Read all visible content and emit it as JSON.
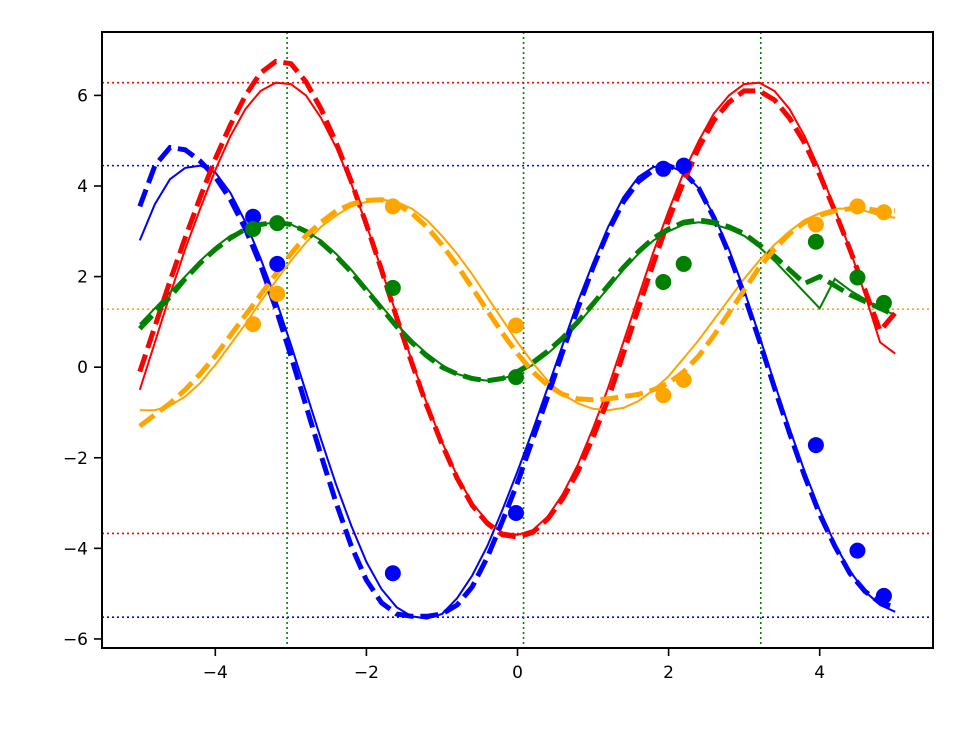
{
  "chart_data": {
    "type": "line",
    "title": "",
    "xlabel": "",
    "ylabel": "",
    "xlim": [
      -5.5,
      5.5
    ],
    "ylim": [
      -6.2,
      7.4
    ],
    "xticks": [
      -4,
      -2,
      0,
      2,
      4
    ],
    "yticks": [
      -6,
      -4,
      -2,
      0,
      2,
      4,
      6
    ],
    "xtick_labels": [
      "−4",
      "−2",
      "0",
      "2",
      "4"
    ],
    "ytick_labels": [
      "−6",
      "−4",
      "−2",
      "0",
      "2",
      "4",
      "6"
    ],
    "grid": false,
    "legend": "none",
    "series": [
      {
        "color": "#0000ff",
        "fit_x": [
          -5.0,
          -4.8,
          -4.6,
          -4.4,
          -4.2,
          -4.0,
          -3.8,
          -3.6,
          -3.4,
          -3.2,
          -3.0,
          -2.8,
          -2.6,
          -2.4,
          -2.2,
          -2.0,
          -1.8,
          -1.6,
          -1.4,
          -1.2,
          -1.0,
          -0.8,
          -0.6,
          -0.4,
          -0.2,
          0.0,
          0.2,
          0.4,
          0.6,
          0.8,
          1.0,
          1.2,
          1.4,
          1.6,
          1.8,
          2.0,
          2.2,
          2.4,
          2.6,
          2.8,
          3.0,
          3.2,
          3.4,
          3.6,
          3.8,
          4.0,
          4.2,
          4.4,
          4.6,
          4.8,
          5.0
        ],
        "fit_y": [
          2.8,
          3.6,
          4.15,
          4.4,
          4.45,
          4.3,
          3.85,
          3.2,
          2.4,
          1.5,
          0.5,
          -0.55,
          -1.6,
          -2.6,
          -3.5,
          -4.3,
          -4.9,
          -5.3,
          -5.5,
          -5.55,
          -5.45,
          -5.1,
          -4.6,
          -3.95,
          -3.15,
          -2.3,
          -1.4,
          -0.45,
          0.5,
          1.45,
          2.3,
          3.1,
          3.75,
          4.2,
          4.42,
          4.45,
          4.3,
          3.95,
          3.35,
          2.6,
          1.7,
          0.7,
          -0.35,
          -1.35,
          -2.3,
          -3.15,
          -3.9,
          -4.5,
          -4.95,
          -5.25,
          -5.4
        ],
        "dashed_x": [
          -5.0,
          -4.8,
          -4.6,
          -4.4,
          -4.2,
          -4.0,
          -3.8,
          -3.6,
          -3.4,
          -3.2,
          -3.0,
          -2.8,
          -2.6,
          -2.4,
          -2.2,
          -2.0,
          -1.8,
          -1.6,
          -1.4,
          -1.2,
          -1.0,
          -0.8,
          -0.6,
          -0.4,
          -0.2,
          0.0,
          0.2,
          0.4,
          0.6,
          0.8,
          1.0,
          1.2,
          1.4,
          1.6,
          1.8,
          2.0,
          2.2,
          2.4,
          2.6,
          2.8,
          3.0,
          3.2,
          3.4,
          3.6,
          3.8,
          4.0,
          4.2,
          4.4,
          4.6,
          4.8,
          5.0
        ],
        "dashed_y": [
          3.55,
          4.45,
          4.85,
          4.8,
          4.55,
          4.2,
          3.7,
          3.05,
          2.25,
          1.3,
          0.25,
          -0.85,
          -1.95,
          -3.0,
          -3.95,
          -4.7,
          -5.2,
          -5.45,
          -5.5,
          -5.5,
          -5.45,
          -5.25,
          -4.85,
          -4.2,
          -3.4,
          -2.55,
          -1.6,
          -0.65,
          0.35,
          1.3,
          2.2,
          3.0,
          3.65,
          4.1,
          4.35,
          4.45,
          4.3,
          3.95,
          3.3,
          2.5,
          1.6,
          0.6,
          -0.45,
          -1.45,
          -2.4,
          -3.25,
          -3.95,
          -4.55,
          -4.95,
          -5.2,
          -5.3
        ],
        "points_x": [
          -3.5,
          -3.18,
          -1.65,
          -0.02,
          1.93,
          2.2,
          3.95,
          4.5,
          4.85
        ],
        "points_y": [
          3.32,
          2.28,
          -4.55,
          -3.22,
          4.38,
          4.45,
          -1.72,
          -4.05,
          -5.05
        ],
        "hline": 4.45,
        "hline2": -5.52
      },
      {
        "color": "#ff0000",
        "fit_x": [
          -5.0,
          -4.8,
          -4.6,
          -4.4,
          -4.2,
          -4.0,
          -3.8,
          -3.6,
          -3.4,
          -3.2,
          -3.0,
          -2.8,
          -2.6,
          -2.4,
          -2.2,
          -2.0,
          -1.8,
          -1.6,
          -1.4,
          -1.2,
          -1.0,
          -0.8,
          -0.6,
          -0.4,
          -0.2,
          0.0,
          0.2,
          0.4,
          0.6,
          0.8,
          1.0,
          1.2,
          1.4,
          1.6,
          1.8,
          2.0,
          2.2,
          2.4,
          2.6,
          2.8,
          3.0,
          3.2,
          3.4,
          3.6,
          3.8,
          4.0,
          4.2,
          4.4,
          4.6,
          4.8,
          5.0
        ],
        "fit_y": [
          -0.5,
          0.55,
          1.6,
          2.6,
          3.5,
          4.35,
          5.1,
          5.7,
          6.1,
          6.28,
          6.25,
          6.0,
          5.5,
          4.85,
          4.05,
          3.15,
          2.15,
          1.15,
          0.15,
          -0.8,
          -1.65,
          -2.4,
          -3.0,
          -3.4,
          -3.65,
          -3.7,
          -3.6,
          -3.3,
          -2.8,
          -2.15,
          -1.35,
          -0.45,
          0.55,
          1.55,
          2.55,
          3.45,
          4.3,
          5.0,
          5.6,
          6.0,
          6.25,
          6.28,
          6.1,
          5.7,
          5.1,
          4.35,
          3.5,
          2.6,
          1.6,
          0.55,
          0.3
        ],
        "dashed_x": [
          -5.0,
          -4.8,
          -4.6,
          -4.4,
          -4.2,
          -4.0,
          -3.8,
          -3.6,
          -3.4,
          -3.2,
          -3.0,
          -2.8,
          -2.6,
          -2.4,
          -2.2,
          -2.0,
          -1.8,
          -1.6,
          -1.4,
          -1.2,
          -1.0,
          -0.8,
          -0.6,
          -0.4,
          -0.2,
          0.0,
          0.2,
          0.4,
          0.6,
          0.8,
          1.0,
          1.2,
          1.4,
          1.6,
          1.8,
          2.0,
          2.2,
          2.4,
          2.6,
          2.8,
          3.0,
          3.2,
          3.4,
          3.6,
          3.8,
          4.0,
          4.2,
          4.4,
          4.6,
          4.8,
          5.0
        ],
        "dashed_y": [
          -0.1,
          0.9,
          1.9,
          2.85,
          3.75,
          4.6,
          5.35,
          6.0,
          6.5,
          6.75,
          6.7,
          6.3,
          5.7,
          4.95,
          4.1,
          3.15,
          2.15,
          1.1,
          0.1,
          -0.85,
          -1.7,
          -2.45,
          -3.05,
          -3.45,
          -3.7,
          -3.75,
          -3.65,
          -3.35,
          -2.9,
          -2.3,
          -1.55,
          -0.7,
          0.3,
          1.3,
          2.3,
          3.25,
          4.1,
          4.85,
          5.45,
          5.85,
          6.1,
          6.1,
          5.9,
          5.5,
          4.95,
          4.25,
          3.45,
          2.6,
          1.7,
          0.8,
          1.2
        ],
        "points_x": [],
        "points_y": [],
        "hline": 6.28,
        "hline2": -3.67
      },
      {
        "color": "#008000",
        "fit_x": [
          -5.0,
          -4.8,
          -4.6,
          -4.4,
          -4.2,
          -4.0,
          -3.8,
          -3.6,
          -3.4,
          -3.2,
          -3.0,
          -2.8,
          -2.6,
          -2.4,
          -2.2,
          -2.0,
          -1.8,
          -1.6,
          -1.4,
          -1.2,
          -1.0,
          -0.8,
          -0.6,
          -0.4,
          -0.2,
          0.0,
          0.2,
          0.4,
          0.6,
          0.8,
          1.0,
          1.2,
          1.4,
          1.6,
          1.8,
          2.0,
          2.2,
          2.4,
          2.6,
          2.8,
          3.0,
          3.2,
          3.4,
          3.6,
          3.8,
          4.0,
          4.2,
          4.4,
          4.6,
          4.8,
          5.0
        ],
        "fit_y": [
          0.95,
          1.3,
          1.65,
          2.0,
          2.35,
          2.65,
          2.9,
          3.05,
          3.15,
          3.2,
          3.15,
          3.0,
          2.8,
          2.5,
          2.15,
          1.75,
          1.35,
          0.95,
          0.6,
          0.3,
          0.05,
          -0.15,
          -0.25,
          -0.3,
          -0.25,
          -0.15,
          0.05,
          0.3,
          0.6,
          0.95,
          1.35,
          1.75,
          2.15,
          2.5,
          2.8,
          3.0,
          3.15,
          3.2,
          3.15,
          3.05,
          2.9,
          2.65,
          2.35,
          2.0,
          1.65,
          1.3,
          1.95,
          1.7,
          1.5,
          1.3,
          1.15
        ],
        "dashed_x": [
          -5.0,
          -4.8,
          -4.6,
          -4.4,
          -4.2,
          -4.0,
          -3.8,
          -3.6,
          -3.4,
          -3.2,
          -3.0,
          -2.8,
          -2.6,
          -2.4,
          -2.2,
          -2.0,
          -1.8,
          -1.6,
          -1.4,
          -1.2,
          -1.0,
          -0.8,
          -0.6,
          -0.4,
          -0.2,
          0.0,
          0.2,
          0.4,
          0.6,
          0.8,
          1.0,
          1.2,
          1.4,
          1.6,
          1.8,
          2.0,
          2.2,
          2.4,
          2.6,
          2.8,
          3.0,
          3.2,
          3.4,
          3.6,
          3.8,
          4.0,
          4.2,
          4.4,
          4.6,
          4.8,
          5.0
        ],
        "dashed_y": [
          0.85,
          1.2,
          1.55,
          1.95,
          2.3,
          2.6,
          2.85,
          3.05,
          3.15,
          3.2,
          3.15,
          3.0,
          2.75,
          2.45,
          2.1,
          1.7,
          1.3,
          0.9,
          0.55,
          0.25,
          0.0,
          -0.15,
          -0.25,
          -0.3,
          -0.25,
          -0.1,
          0.1,
          0.35,
          0.65,
          1.0,
          1.4,
          1.8,
          2.2,
          2.55,
          2.85,
          3.05,
          3.2,
          3.25,
          3.2,
          3.1,
          2.95,
          2.7,
          2.45,
          2.15,
          1.85,
          2.0,
          1.8,
          1.6,
          1.45,
          1.3,
          1.15
        ],
        "points_x": [
          -3.5,
          -3.18,
          -1.65,
          -0.02,
          1.93,
          2.2,
          3.95,
          4.5,
          4.85
        ],
        "points_y": [
          3.05,
          3.18,
          1.75,
          -0.22,
          1.88,
          2.28,
          2.77,
          1.98,
          1.42
        ],
        "hline": null,
        "hline2": null
      },
      {
        "color": "#ffa500",
        "fit_x": [
          -5.0,
          -4.8,
          -4.6,
          -4.4,
          -4.2,
          -4.0,
          -3.8,
          -3.6,
          -3.4,
          -3.2,
          -3.0,
          -2.8,
          -2.6,
          -2.4,
          -2.2,
          -2.0,
          -1.8,
          -1.6,
          -1.4,
          -1.2,
          -1.0,
          -0.8,
          -0.6,
          -0.4,
          -0.2,
          0.0,
          0.2,
          0.4,
          0.6,
          0.8,
          1.0,
          1.2,
          1.4,
          1.6,
          1.8,
          2.0,
          2.2,
          2.4,
          2.6,
          2.8,
          3.0,
          3.2,
          3.4,
          3.6,
          3.8,
          4.0,
          4.2,
          4.4,
          4.6,
          4.8,
          5.0
        ],
        "fit_y": [
          -0.95,
          -0.95,
          -0.85,
          -0.65,
          -0.35,
          0.05,
          0.5,
          0.95,
          1.45,
          1.9,
          2.35,
          2.75,
          3.1,
          3.35,
          3.55,
          3.65,
          3.7,
          3.65,
          3.5,
          3.25,
          2.9,
          2.5,
          2.05,
          1.55,
          1.05,
          0.55,
          0.1,
          -0.3,
          -0.6,
          -0.8,
          -0.92,
          -0.95,
          -0.9,
          -0.75,
          -0.5,
          -0.2,
          0.2,
          0.6,
          1.05,
          1.5,
          1.95,
          2.35,
          2.7,
          3.0,
          3.25,
          3.4,
          3.5,
          3.5,
          3.45,
          3.35,
          3.3
        ],
        "dashed_x": [
          -5.0,
          -4.8,
          -4.6,
          -4.4,
          -4.2,
          -4.0,
          -3.8,
          -3.6,
          -3.4,
          -3.2,
          -3.0,
          -2.8,
          -2.6,
          -2.4,
          -2.2,
          -2.0,
          -1.8,
          -1.6,
          -1.4,
          -1.2,
          -1.0,
          -0.8,
          -0.6,
          -0.4,
          -0.2,
          0.0,
          0.2,
          0.4,
          0.6,
          0.8,
          1.0,
          1.2,
          1.4,
          1.6,
          1.8,
          2.0,
          2.2,
          2.4,
          2.6,
          2.8,
          3.0,
          3.2,
          3.4,
          3.6,
          3.8,
          4.0,
          4.2,
          4.4,
          4.6,
          4.8,
          5.0
        ],
        "dashed_y": [
          -1.3,
          -1.05,
          -0.8,
          -0.5,
          -0.15,
          0.25,
          0.7,
          1.15,
          1.6,
          2.05,
          2.5,
          2.9,
          3.2,
          3.45,
          3.6,
          3.68,
          3.7,
          3.6,
          3.4,
          3.1,
          2.7,
          2.25,
          1.75,
          1.25,
          0.75,
          0.3,
          -0.1,
          -0.4,
          -0.6,
          -0.7,
          -0.72,
          -0.7,
          -0.65,
          -0.6,
          -0.5,
          -0.35,
          -0.1,
          0.25,
          0.7,
          1.2,
          1.7,
          2.2,
          2.6,
          2.95,
          3.2,
          3.35,
          3.45,
          3.5,
          3.5,
          3.45,
          3.45
        ],
        "points_x": [
          -3.5,
          -3.18,
          -1.65,
          -0.02,
          1.93,
          2.2,
          3.95,
          4.5,
          4.85
        ],
        "points_y": [
          0.95,
          1.62,
          3.55,
          0.92,
          -0.62,
          -0.28,
          3.15,
          3.55,
          3.42
        ],
        "hline": 1.28,
        "hline2": null
      }
    ],
    "vlines": {
      "color": "#008000",
      "x": [
        -3.05,
        0.08,
        3.22
      ]
    }
  }
}
